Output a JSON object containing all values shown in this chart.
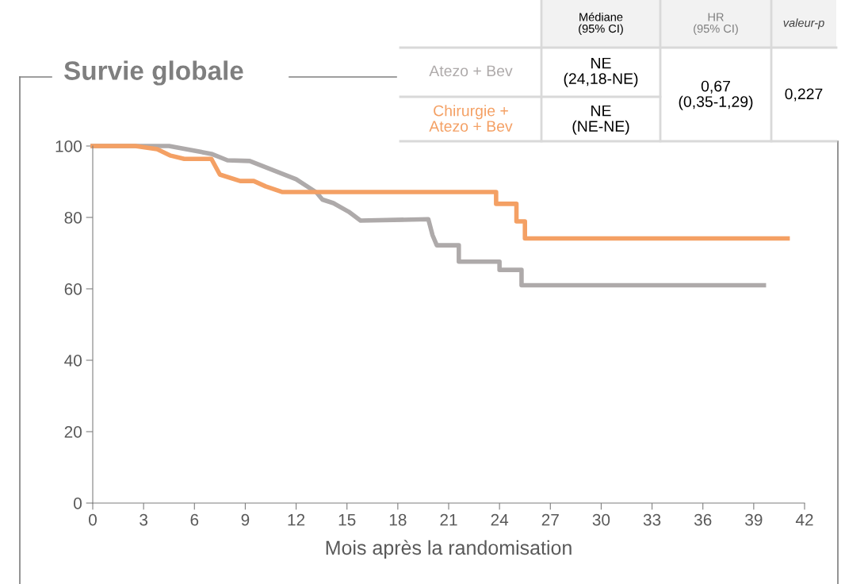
{
  "chart_data": {
    "type": "line",
    "title": "Survie globale",
    "xlabel": "Mois après la randomisation",
    "xlim": [
      0,
      42
    ],
    "xticks": [
      0,
      3,
      6,
      9,
      12,
      15,
      18,
      21,
      24,
      27,
      30,
      33,
      36,
      39,
      42
    ],
    "ylim": [
      0,
      100
    ],
    "yticks": [
      0,
      20,
      40,
      60,
      80,
      100
    ],
    "grid": false,
    "marker": "none",
    "line_style": "solid",
    "series": [
      {
        "name": "Atezo + Bev",
        "color": "#aeaaaa",
        "x": [
          0,
          4.5,
          7.0,
          7.95,
          9.26,
          12.0,
          13.2,
          13.55,
          14.2,
          15.1,
          15.8,
          19.8,
          20.05,
          20.3,
          21.6,
          21.6,
          24.0,
          24.0,
          25.3,
          25.3,
          39.6
        ],
        "values": [
          100,
          100,
          97.8,
          96,
          95.8,
          90.7,
          87,
          85,
          84,
          81.6,
          79.1,
          79.5,
          75,
          72.2,
          72.2,
          67.6,
          67.6,
          65.3,
          65.3,
          61,
          61
        ]
      },
      {
        "name": "Chirurgie + Atezo + Bev",
        "color": "#f4a064",
        "x": [
          0,
          2.5,
          3.8,
          4.6,
          5.4,
          7.0,
          7.5,
          8.7,
          9.5,
          10.2,
          11.2,
          23.8,
          23.8,
          25.0,
          25.0,
          25.5,
          25.5,
          41.0
        ],
        "values": [
          100,
          100,
          99.1,
          97.3,
          96.4,
          96.4,
          92,
          90.2,
          90.2,
          88.7,
          87.1,
          87.1,
          83.8,
          83.8,
          78.9,
          78.9,
          74.1,
          74.1
        ]
      }
    ],
    "annotations": [
      "Médiane\n(95% CI)",
      "HR\n(95% CI)",
      "valeur-p",
      "NE\n(24,18-NE)",
      "NE\n(NE-NE)",
      "0,67\n(0,35-1,29)",
      "0,227"
    ]
  }
}
